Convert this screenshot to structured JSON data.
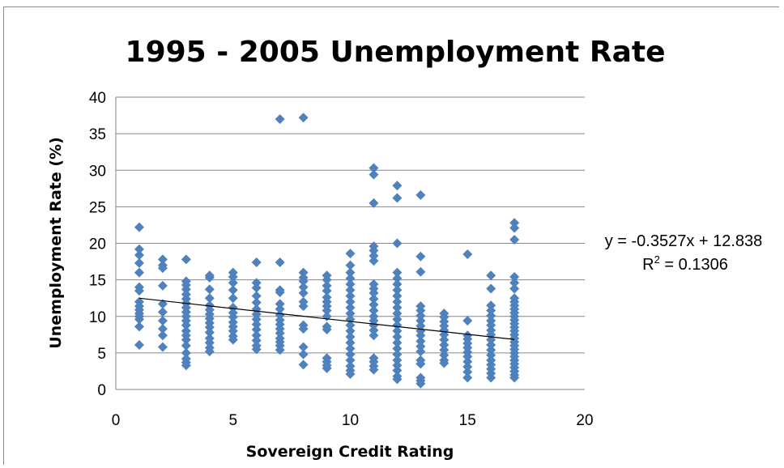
{
  "chart_data": {
    "type": "scatter",
    "title": "1995 - 2005 Unemployment Rate",
    "xlabel": "Sovereign Credit Rating",
    "ylabel": "Unemployment Rate (%)",
    "xlim": [
      0,
      20
    ],
    "ylim": [
      0,
      40
    ],
    "x_ticks": [
      0,
      5,
      10,
      15,
      20
    ],
    "y_ticks": [
      0,
      5,
      10,
      15,
      20,
      25,
      30,
      35,
      40
    ],
    "x_tick_labels": [
      "0",
      "5",
      "10",
      "15",
      "20"
    ],
    "y_tick_labels": [
      "0",
      "5",
      "10",
      "15",
      "20",
      "25",
      "30",
      "35",
      "40"
    ],
    "grid": "horizontal",
    "legend": "none",
    "marker_color": "#4F81BD",
    "trendline": {
      "type": "linear",
      "slope": -0.3527,
      "intercept": 12.838,
      "x_range": [
        1,
        17
      ],
      "color": "#000000",
      "equation_label": "y = -0.3527x + 12.838",
      "r2_label_prefix": "R",
      "r2_label_sup": "2",
      "r2_label_suffix": " = 0.1306"
    },
    "points": [
      [
        1,
        22.2
      ],
      [
        1,
        19.2
      ],
      [
        1,
        18.4
      ],
      [
        1,
        17.3
      ],
      [
        1,
        16.0
      ],
      [
        1,
        14.0
      ],
      [
        1,
        13.5
      ],
      [
        1,
        12.0
      ],
      [
        1,
        11.4
      ],
      [
        1,
        10.9
      ],
      [
        1,
        10.4
      ],
      [
        1,
        10.0
      ],
      [
        1,
        9.6
      ],
      [
        1,
        8.6
      ],
      [
        1,
        6.1
      ],
      [
        2,
        17.8
      ],
      [
        2,
        17.0
      ],
      [
        2,
        16.6
      ],
      [
        2,
        14.2
      ],
      [
        2,
        11.7
      ],
      [
        2,
        10.6
      ],
      [
        2,
        9.4
      ],
      [
        2,
        8.3
      ],
      [
        2,
        7.4
      ],
      [
        2,
        5.8
      ],
      [
        3,
        17.8
      ],
      [
        3,
        14.8
      ],
      [
        3,
        14.3
      ],
      [
        3,
        13.7
      ],
      [
        3,
        13.0
      ],
      [
        3,
        12.4
      ],
      [
        3,
        11.8
      ],
      [
        3,
        11.2
      ],
      [
        3,
        10.6
      ],
      [
        3,
        10.0
      ],
      [
        3,
        9.4
      ],
      [
        3,
        8.8
      ],
      [
        3,
        8.0
      ],
      [
        3,
        7.4
      ],
      [
        3,
        6.8
      ],
      [
        3,
        6.0
      ],
      [
        3,
        5.0
      ],
      [
        3,
        4.2
      ],
      [
        3,
        3.7
      ],
      [
        3,
        3.3
      ],
      [
        4,
        15.6
      ],
      [
        4,
        15.3
      ],
      [
        4,
        13.7
      ],
      [
        4,
        12.5
      ],
      [
        4,
        11.5
      ],
      [
        4,
        10.9
      ],
      [
        4,
        10.3
      ],
      [
        4,
        9.7
      ],
      [
        4,
        9.1
      ],
      [
        4,
        8.5
      ],
      [
        4,
        7.8
      ],
      [
        4,
        7.0
      ],
      [
        4,
        6.4
      ],
      [
        4,
        5.7
      ],
      [
        4,
        5.2
      ],
      [
        5,
        16.0
      ],
      [
        5,
        15.4
      ],
      [
        5,
        14.6
      ],
      [
        5,
        13.6
      ],
      [
        5,
        12.5
      ],
      [
        5,
        11.2
      ],
      [
        5,
        10.5
      ],
      [
        5,
        9.9
      ],
      [
        5,
        9.2
      ],
      [
        5,
        8.6
      ],
      [
        5,
        8.0
      ],
      [
        5,
        7.3
      ],
      [
        5,
        6.8
      ],
      [
        6,
        17.4
      ],
      [
        6,
        14.6
      ],
      [
        6,
        13.9
      ],
      [
        6,
        12.8
      ],
      [
        6,
        11.9
      ],
      [
        6,
        11.0
      ],
      [
        6,
        10.3
      ],
      [
        6,
        9.6
      ],
      [
        6,
        8.9
      ],
      [
        6,
        8.2
      ],
      [
        6,
        7.4
      ],
      [
        6,
        6.7
      ],
      [
        6,
        6.0
      ],
      [
        6,
        5.5
      ],
      [
        7,
        37.0
      ],
      [
        7,
        17.4
      ],
      [
        7,
        13.6
      ],
      [
        7,
        13.3
      ],
      [
        7,
        11.7
      ],
      [
        7,
        11.0
      ],
      [
        7,
        10.2
      ],
      [
        7,
        9.5
      ],
      [
        7,
        8.9
      ],
      [
        7,
        8.3
      ],
      [
        7,
        7.7
      ],
      [
        7,
        7.0
      ],
      [
        7,
        6.5
      ],
      [
        7,
        6.0
      ],
      [
        7,
        5.4
      ],
      [
        8,
        37.2
      ],
      [
        8,
        16.0
      ],
      [
        8,
        15.3
      ],
      [
        8,
        14.8
      ],
      [
        8,
        14.0
      ],
      [
        8,
        13.2
      ],
      [
        8,
        12.0
      ],
      [
        8,
        11.4
      ],
      [
        8,
        8.8
      ],
      [
        8,
        8.3
      ],
      [
        8,
        5.8
      ],
      [
        8,
        4.8
      ],
      [
        8,
        3.4
      ],
      [
        9,
        15.6
      ],
      [
        9,
        15.0
      ],
      [
        9,
        14.2
      ],
      [
        9,
        13.5
      ],
      [
        9,
        12.6
      ],
      [
        9,
        12.0
      ],
      [
        9,
        11.4
      ],
      [
        9,
        10.8
      ],
      [
        9,
        10.0
      ],
      [
        9,
        8.6
      ],
      [
        9,
        8.2
      ],
      [
        9,
        4.3
      ],
      [
        9,
        3.8
      ],
      [
        9,
        3.3
      ],
      [
        9,
        2.9
      ],
      [
        10,
        18.6
      ],
      [
        10,
        17.0
      ],
      [
        10,
        16.0
      ],
      [
        10,
        15.2
      ],
      [
        10,
        14.4
      ],
      [
        10,
        13.6
      ],
      [
        10,
        12.8
      ],
      [
        10,
        12.0
      ],
      [
        10,
        11.2
      ],
      [
        10,
        10.4
      ],
      [
        10,
        9.6
      ],
      [
        10,
        8.8
      ],
      [
        10,
        8.0
      ],
      [
        10,
        7.2
      ],
      [
        10,
        6.4
      ],
      [
        10,
        5.6
      ],
      [
        10,
        4.8
      ],
      [
        10,
        4.0
      ],
      [
        10,
        3.2
      ],
      [
        10,
        2.6
      ],
      [
        10,
        2.1
      ],
      [
        11,
        30.3
      ],
      [
        11,
        29.4
      ],
      [
        11,
        25.5
      ],
      [
        11,
        19.6
      ],
      [
        11,
        19.0
      ],
      [
        11,
        18.3
      ],
      [
        11,
        17.6
      ],
      [
        11,
        14.4
      ],
      [
        11,
        13.8
      ],
      [
        11,
        13.2
      ],
      [
        11,
        12.4
      ],
      [
        11,
        11.6
      ],
      [
        11,
        10.8
      ],
      [
        11,
        10.0
      ],
      [
        11,
        9.4
      ],
      [
        11,
        8.8
      ],
      [
        11,
        8.1
      ],
      [
        11,
        7.4
      ],
      [
        11,
        4.3
      ],
      [
        11,
        3.8
      ],
      [
        11,
        3.2
      ],
      [
        11,
        2.7
      ],
      [
        12,
        27.9
      ],
      [
        12,
        26.2
      ],
      [
        12,
        20.0
      ],
      [
        12,
        16.0
      ],
      [
        12,
        15.2
      ],
      [
        12,
        14.4
      ],
      [
        12,
        13.6
      ],
      [
        12,
        12.8
      ],
      [
        12,
        12.0
      ],
      [
        12,
        11.2
      ],
      [
        12,
        10.4
      ],
      [
        12,
        9.6
      ],
      [
        12,
        8.8
      ],
      [
        12,
        8.0
      ],
      [
        12,
        7.2
      ],
      [
        12,
        6.4
      ],
      [
        12,
        5.6
      ],
      [
        12,
        4.8
      ],
      [
        12,
        4.0
      ],
      [
        12,
        3.3
      ],
      [
        12,
        2.6
      ],
      [
        12,
        1.8
      ],
      [
        12,
        1.4
      ],
      [
        13,
        26.6
      ],
      [
        13,
        18.2
      ],
      [
        13,
        16.1
      ],
      [
        13,
        11.4
      ],
      [
        13,
        10.8
      ],
      [
        13,
        10.1
      ],
      [
        13,
        9.4
      ],
      [
        13,
        8.7
      ],
      [
        13,
        8.0
      ],
      [
        13,
        7.4
      ],
      [
        13,
        6.6
      ],
      [
        13,
        5.9
      ],
      [
        13,
        5.2
      ],
      [
        13,
        4.0
      ],
      [
        13,
        3.5
      ],
      [
        13,
        1.6
      ],
      [
        13,
        1.2
      ],
      [
        13,
        0.8
      ],
      [
        14,
        10.4
      ],
      [
        14,
        9.9
      ],
      [
        14,
        9.3
      ],
      [
        14,
        8.7
      ],
      [
        14,
        8.1
      ],
      [
        14,
        7.5
      ],
      [
        14,
        6.8
      ],
      [
        14,
        6.1
      ],
      [
        14,
        5.4
      ],
      [
        14,
        4.7
      ],
      [
        14,
        4.0
      ],
      [
        14,
        3.6
      ],
      [
        15,
        18.5
      ],
      [
        15,
        9.4
      ],
      [
        15,
        7.4
      ],
      [
        15,
        6.9
      ],
      [
        15,
        6.3
      ],
      [
        15,
        5.7
      ],
      [
        15,
        5.1
      ],
      [
        15,
        4.5
      ],
      [
        15,
        3.8
      ],
      [
        15,
        3.1
      ],
      [
        15,
        2.4
      ],
      [
        15,
        1.6
      ],
      [
        16,
        15.6
      ],
      [
        16,
        13.8
      ],
      [
        16,
        11.5
      ],
      [
        16,
        10.8
      ],
      [
        16,
        10.1
      ],
      [
        16,
        9.4
      ],
      [
        16,
        8.8
      ],
      [
        16,
        8.1
      ],
      [
        16,
        7.5
      ],
      [
        16,
        6.8
      ],
      [
        16,
        6.1
      ],
      [
        16,
        5.4
      ],
      [
        16,
        4.7
      ],
      [
        16,
        4.0
      ],
      [
        16,
        3.4
      ],
      [
        16,
        2.8
      ],
      [
        16,
        2.2
      ],
      [
        16,
        1.6
      ],
      [
        17,
        22.8
      ],
      [
        17,
        22.1
      ],
      [
        17,
        20.5
      ],
      [
        17,
        15.4
      ],
      [
        17,
        14.6
      ],
      [
        17,
        13.8
      ],
      [
        17,
        12.5
      ],
      [
        17,
        12.0
      ],
      [
        17,
        11.5
      ],
      [
        17,
        11.0
      ],
      [
        17,
        10.5
      ],
      [
        17,
        10.0
      ],
      [
        17,
        9.5
      ],
      [
        17,
        9.0
      ],
      [
        17,
        8.5
      ],
      [
        17,
        8.0
      ],
      [
        17,
        7.5
      ],
      [
        17,
        7.0
      ],
      [
        17,
        6.5
      ],
      [
        17,
        6.0
      ],
      [
        17,
        5.5
      ],
      [
        17,
        5.0
      ],
      [
        17,
        4.5
      ],
      [
        17,
        4.0
      ],
      [
        17,
        3.5
      ],
      [
        17,
        3.0
      ],
      [
        17,
        2.5
      ],
      [
        17,
        2.0
      ],
      [
        17,
        1.6
      ]
    ]
  }
}
